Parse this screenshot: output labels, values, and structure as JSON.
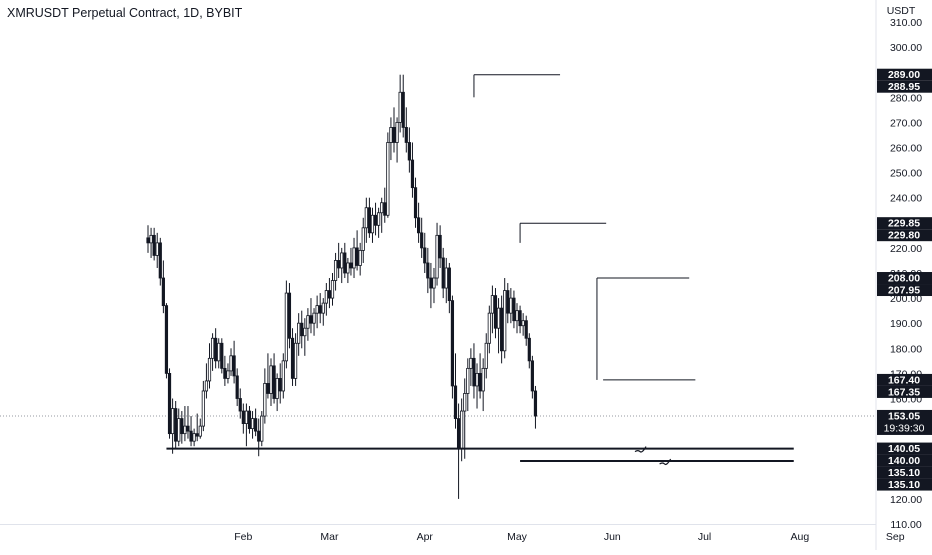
{
  "header": {
    "title": "XMRUSDT Perpetual Contract, 1D, BYBIT"
  },
  "chart_data": {
    "type": "candlestick",
    "currency": "USDT",
    "ylim": [
      110,
      310
    ],
    "y_ticks": [
      "110.00",
      "120.00",
      "130.00",
      "140.00",
      "150.00",
      "160.00",
      "170.00",
      "180.00",
      "190.00",
      "200.00",
      "210.00",
      "220.00",
      "230.00",
      "240.00",
      "250.00",
      "260.00",
      "270.00",
      "280.00",
      "290.00",
      "300.00",
      "310.00"
    ],
    "x_ticks": [
      {
        "label": "Feb",
        "day": 31
      },
      {
        "label": "Mar",
        "day": 59
      },
      {
        "label": "Apr",
        "day": 90
      },
      {
        "label": "May",
        "day": 120
      },
      {
        "label": "Jun",
        "day": 151
      },
      {
        "label": "Jul",
        "day": 181
      },
      {
        "label": "Aug",
        "day": 212
      },
      {
        "label": "Sep",
        "day": 243
      }
    ],
    "grid": false,
    "last_price": "153.05",
    "countdown": "19:39:30",
    "price_labels": [
      {
        "value": 289.0,
        "text": "289.00"
      },
      {
        "value": 288.95,
        "text": "288.95"
      },
      {
        "value": 229.85,
        "text": "229.85"
      },
      {
        "value": 229.8,
        "text": "229.80"
      },
      {
        "value": 208.0,
        "text": "208.00"
      },
      {
        "value": 207.95,
        "text": "207.95"
      },
      {
        "value": 167.4,
        "text": "167.40"
      },
      {
        "value": 167.35,
        "text": "167.35"
      },
      {
        "value": 140.05,
        "text": "140.05"
      },
      {
        "value": 140.0,
        "text": "140.00"
      },
      {
        "value": 135.1,
        "text": "135.10"
      },
      {
        "value": 135.1,
        "text": "135.10"
      }
    ],
    "drawings": [
      {
        "type": "hline",
        "price": 289,
        "from_day": 106,
        "to_day": 134,
        "weight": 1
      },
      {
        "type": "hline",
        "price": 229.8,
        "from_day": 121,
        "to_day": 149,
        "weight": 1
      },
      {
        "type": "hline",
        "price": 208,
        "from_day": 146,
        "to_day": 176,
        "weight": 1
      },
      {
        "type": "hline",
        "price": 167.4,
        "from_day": 148,
        "to_day": 178,
        "weight": 1
      },
      {
        "type": "vline",
        "day": 146,
        "from": 208,
        "to": 167.4,
        "weight": 1
      },
      {
        "type": "vline",
        "day": 106,
        "from": 289,
        "to": 280,
        "weight": 1
      },
      {
        "type": "vline",
        "day": 121,
        "from": 229.8,
        "to": 222,
        "weight": 1
      },
      {
        "type": "hline",
        "price": 140.05,
        "from_day": 6,
        "to_day": 210,
        "weight": 2
      },
      {
        "type": "hline",
        "price": 135.1,
        "from_day": 121,
        "to_day": 210,
        "weight": 2
      }
    ],
    "candles": [
      {
        "day": 0,
        "o": 224,
        "h": 229,
        "l": 218,
        "c": 222
      },
      {
        "day": 1,
        "o": 222,
        "h": 228,
        "l": 216,
        "c": 225
      },
      {
        "day": 2,
        "o": 225,
        "h": 228,
        "l": 215,
        "c": 217
      },
      {
        "day": 3,
        "o": 217,
        "h": 226,
        "l": 212,
        "c": 222
      },
      {
        "day": 4,
        "o": 222,
        "h": 224,
        "l": 205,
        "c": 208
      },
      {
        "day": 5,
        "o": 208,
        "h": 215,
        "l": 194,
        "c": 197
      },
      {
        "day": 6,
        "o": 197,
        "h": 198,
        "l": 168,
        "c": 170
      },
      {
        "day": 7,
        "o": 170,
        "h": 172,
        "l": 144,
        "c": 146
      },
      {
        "day": 8,
        "o": 146,
        "h": 160,
        "l": 138,
        "c": 156
      },
      {
        "day": 9,
        "o": 156,
        "h": 159,
        "l": 140,
        "c": 143
      },
      {
        "day": 10,
        "o": 143,
        "h": 156,
        "l": 141,
        "c": 152
      },
      {
        "day": 11,
        "o": 152,
        "h": 155,
        "l": 142,
        "c": 146
      },
      {
        "day": 12,
        "o": 146,
        "h": 157,
        "l": 143,
        "c": 149
      },
      {
        "day": 13,
        "o": 149,
        "h": 157,
        "l": 144,
        "c": 147
      },
      {
        "day": 14,
        "o": 147,
        "h": 153,
        "l": 141,
        "c": 143
      },
      {
        "day": 15,
        "o": 143,
        "h": 148,
        "l": 141,
        "c": 146
      },
      {
        "day": 16,
        "o": 146,
        "h": 154,
        "l": 143,
        "c": 145
      },
      {
        "day": 17,
        "o": 145,
        "h": 152,
        "l": 144,
        "c": 149
      },
      {
        "day": 18,
        "o": 149,
        "h": 167,
        "l": 147,
        "c": 163
      },
      {
        "day": 19,
        "o": 163,
        "h": 174,
        "l": 160,
        "c": 167
      },
      {
        "day": 20,
        "o": 167,
        "h": 182,
        "l": 164,
        "c": 176
      },
      {
        "day": 21,
        "o": 176,
        "h": 186,
        "l": 171,
        "c": 184
      },
      {
        "day": 22,
        "o": 184,
        "h": 188,
        "l": 172,
        "c": 175
      },
      {
        "day": 23,
        "o": 175,
        "h": 184,
        "l": 172,
        "c": 182
      },
      {
        "day": 24,
        "o": 182,
        "h": 184,
        "l": 170,
        "c": 172
      },
      {
        "day": 25,
        "o": 172,
        "h": 177,
        "l": 165,
        "c": 168
      },
      {
        "day": 26,
        "o": 168,
        "h": 174,
        "l": 166,
        "c": 171
      },
      {
        "day": 27,
        "o": 171,
        "h": 180,
        "l": 169,
        "c": 177
      },
      {
        "day": 28,
        "o": 177,
        "h": 183,
        "l": 166,
        "c": 169
      },
      {
        "day": 29,
        "o": 169,
        "h": 172,
        "l": 157,
        "c": 160
      },
      {
        "day": 30,
        "o": 160,
        "h": 164,
        "l": 152,
        "c": 155
      },
      {
        "day": 31,
        "o": 155,
        "h": 158,
        "l": 146,
        "c": 150
      },
      {
        "day": 32,
        "o": 150,
        "h": 158,
        "l": 141,
        "c": 155
      },
      {
        "day": 33,
        "o": 155,
        "h": 157,
        "l": 146,
        "c": 148
      },
      {
        "day": 34,
        "o": 148,
        "h": 155,
        "l": 144,
        "c": 152
      },
      {
        "day": 35,
        "o": 152,
        "h": 156,
        "l": 145,
        "c": 147
      },
      {
        "day": 36,
        "o": 147,
        "h": 152,
        "l": 137,
        "c": 143
      },
      {
        "day": 37,
        "o": 143,
        "h": 155,
        "l": 141,
        "c": 153
      },
      {
        "day": 38,
        "o": 153,
        "h": 172,
        "l": 150,
        "c": 166
      },
      {
        "day": 39,
        "o": 166,
        "h": 178,
        "l": 160,
        "c": 162
      },
      {
        "day": 40,
        "o": 162,
        "h": 176,
        "l": 157,
        "c": 173
      },
      {
        "day": 41,
        "o": 173,
        "h": 178,
        "l": 158,
        "c": 160
      },
      {
        "day": 42,
        "o": 160,
        "h": 170,
        "l": 155,
        "c": 168
      },
      {
        "day": 43,
        "o": 168,
        "h": 174,
        "l": 158,
        "c": 163
      },
      {
        "day": 44,
        "o": 163,
        "h": 178,
        "l": 160,
        "c": 175
      },
      {
        "day": 45,
        "o": 175,
        "h": 207,
        "l": 172,
        "c": 202
      },
      {
        "day": 46,
        "o": 202,
        "h": 206,
        "l": 180,
        "c": 184
      },
      {
        "day": 47,
        "o": 184,
        "h": 188,
        "l": 165,
        "c": 168
      },
      {
        "day": 48,
        "o": 168,
        "h": 186,
        "l": 165,
        "c": 182
      },
      {
        "day": 49,
        "o": 182,
        "h": 194,
        "l": 177,
        "c": 190
      },
      {
        "day": 50,
        "o": 190,
        "h": 195,
        "l": 180,
        "c": 185
      },
      {
        "day": 51,
        "o": 185,
        "h": 192,
        "l": 177,
        "c": 188
      },
      {
        "day": 52,
        "o": 188,
        "h": 196,
        "l": 183,
        "c": 193
      },
      {
        "day": 53,
        "o": 193,
        "h": 200,
        "l": 186,
        "c": 190
      },
      {
        "day": 54,
        "o": 190,
        "h": 196,
        "l": 185,
        "c": 194
      },
      {
        "day": 55,
        "o": 194,
        "h": 201,
        "l": 188,
        "c": 197
      },
      {
        "day": 56,
        "o": 197,
        "h": 202,
        "l": 190,
        "c": 194
      },
      {
        "day": 57,
        "o": 194,
        "h": 200,
        "l": 189,
        "c": 198
      },
      {
        "day": 58,
        "o": 198,
        "h": 206,
        "l": 193,
        "c": 203
      },
      {
        "day": 59,
        "o": 203,
        "h": 208,
        "l": 196,
        "c": 200
      },
      {
        "day": 60,
        "o": 200,
        "h": 210,
        "l": 197,
        "c": 207
      },
      {
        "day": 61,
        "o": 207,
        "h": 218,
        "l": 203,
        "c": 215
      },
      {
        "day": 62,
        "o": 215,
        "h": 222,
        "l": 208,
        "c": 212
      },
      {
        "day": 63,
        "o": 212,
        "h": 220,
        "l": 206,
        "c": 218
      },
      {
        "day": 64,
        "o": 218,
        "h": 222,
        "l": 208,
        "c": 210
      },
      {
        "day": 65,
        "o": 210,
        "h": 216,
        "l": 206,
        "c": 214
      },
      {
        "day": 66,
        "o": 214,
        "h": 220,
        "l": 209,
        "c": 212
      },
      {
        "day": 67,
        "o": 212,
        "h": 224,
        "l": 208,
        "c": 220
      },
      {
        "day": 68,
        "o": 220,
        "h": 227,
        "l": 211,
        "c": 213
      },
      {
        "day": 69,
        "o": 213,
        "h": 222,
        "l": 209,
        "c": 219
      },
      {
        "day": 70,
        "o": 219,
        "h": 232,
        "l": 214,
        "c": 228
      },
      {
        "day": 71,
        "o": 228,
        "h": 240,
        "l": 222,
        "c": 236
      },
      {
        "day": 72,
        "o": 236,
        "h": 240,
        "l": 224,
        "c": 226
      },
      {
        "day": 73,
        "o": 226,
        "h": 236,
        "l": 222,
        "c": 233
      },
      {
        "day": 74,
        "o": 233,
        "h": 238,
        "l": 225,
        "c": 229
      },
      {
        "day": 75,
        "o": 229,
        "h": 236,
        "l": 224,
        "c": 234
      },
      {
        "day": 76,
        "o": 234,
        "h": 240,
        "l": 226,
        "c": 238
      },
      {
        "day": 77,
        "o": 238,
        "h": 244,
        "l": 230,
        "c": 233
      },
      {
        "day": 78,
        "o": 233,
        "h": 266,
        "l": 232,
        "c": 262
      },
      {
        "day": 79,
        "o": 262,
        "h": 272,
        "l": 255,
        "c": 268
      },
      {
        "day": 80,
        "o": 268,
        "h": 276,
        "l": 258,
        "c": 262
      },
      {
        "day": 81,
        "o": 262,
        "h": 272,
        "l": 254,
        "c": 270
      },
      {
        "day": 82,
        "o": 270,
        "h": 289,
        "l": 266,
        "c": 282
      },
      {
        "day": 83,
        "o": 282,
        "h": 289,
        "l": 264,
        "c": 268
      },
      {
        "day": 84,
        "o": 268,
        "h": 276,
        "l": 258,
        "c": 262
      },
      {
        "day": 85,
        "o": 262,
        "h": 268,
        "l": 250,
        "c": 255
      },
      {
        "day": 86,
        "o": 255,
        "h": 262,
        "l": 240,
        "c": 244
      },
      {
        "day": 87,
        "o": 244,
        "h": 248,
        "l": 228,
        "c": 232
      },
      {
        "day": 88,
        "o": 232,
        "h": 238,
        "l": 222,
        "c": 226
      },
      {
        "day": 89,
        "o": 226,
        "h": 232,
        "l": 216,
        "c": 220
      },
      {
        "day": 90,
        "o": 220,
        "h": 226,
        "l": 210,
        "c": 214
      },
      {
        "day": 91,
        "o": 214,
        "h": 220,
        "l": 202,
        "c": 208
      },
      {
        "day": 92,
        "o": 208,
        "h": 214,
        "l": 196,
        "c": 204
      },
      {
        "day": 93,
        "o": 204,
        "h": 212,
        "l": 198,
        "c": 208
      },
      {
        "day": 94,
        "o": 208,
        "h": 230,
        "l": 205,
        "c": 225
      },
      {
        "day": 95,
        "o": 225,
        "h": 229,
        "l": 212,
        "c": 216
      },
      {
        "day": 96,
        "o": 216,
        "h": 220,
        "l": 200,
        "c": 204
      },
      {
        "day": 97,
        "o": 204,
        "h": 216,
        "l": 198,
        "c": 212
      },
      {
        "day": 98,
        "o": 212,
        "h": 214,
        "l": 194,
        "c": 199
      },
      {
        "day": 99,
        "o": 199,
        "h": 201,
        "l": 160,
        "c": 165
      },
      {
        "day": 100,
        "o": 165,
        "h": 178,
        "l": 148,
        "c": 152
      },
      {
        "day": 101,
        "o": 152,
        "h": 158,
        "l": 120,
        "c": 140
      },
      {
        "day": 102,
        "o": 140,
        "h": 160,
        "l": 135,
        "c": 155
      },
      {
        "day": 103,
        "o": 155,
        "h": 168,
        "l": 136,
        "c": 162
      },
      {
        "day": 104,
        "o": 162,
        "h": 176,
        "l": 155,
        "c": 172
      },
      {
        "day": 105,
        "o": 172,
        "h": 180,
        "l": 165,
        "c": 176
      },
      {
        "day": 106,
        "o": 176,
        "h": 182,
        "l": 160,
        "c": 165
      },
      {
        "day": 107,
        "o": 165,
        "h": 174,
        "l": 156,
        "c": 170
      },
      {
        "day": 108,
        "o": 170,
        "h": 178,
        "l": 160,
        "c": 163
      },
      {
        "day": 109,
        "o": 163,
        "h": 176,
        "l": 155,
        "c": 172
      },
      {
        "day": 110,
        "o": 172,
        "h": 186,
        "l": 168,
        "c": 182
      },
      {
        "day": 111,
        "o": 182,
        "h": 197,
        "l": 178,
        "c": 194
      },
      {
        "day": 112,
        "o": 194,
        "h": 205,
        "l": 186,
        "c": 201
      },
      {
        "day": 113,
        "o": 201,
        "h": 204,
        "l": 184,
        "c": 188
      },
      {
        "day": 114,
        "o": 188,
        "h": 200,
        "l": 178,
        "c": 196
      },
      {
        "day": 115,
        "o": 196,
        "h": 201,
        "l": 174,
        "c": 179
      },
      {
        "day": 116,
        "o": 179,
        "h": 208,
        "l": 176,
        "c": 203
      },
      {
        "day": 117,
        "o": 203,
        "h": 206,
        "l": 190,
        "c": 194
      },
      {
        "day": 118,
        "o": 194,
        "h": 204,
        "l": 190,
        "c": 200
      },
      {
        "day": 119,
        "o": 200,
        "h": 203,
        "l": 188,
        "c": 191
      },
      {
        "day": 120,
        "o": 191,
        "h": 198,
        "l": 186,
        "c": 195
      },
      {
        "day": 121,
        "o": 195,
        "h": 197,
        "l": 186,
        "c": 189
      },
      {
        "day": 122,
        "o": 189,
        "h": 194,
        "l": 185,
        "c": 191
      },
      {
        "day": 123,
        "o": 191,
        "h": 193,
        "l": 181,
        "c": 184
      },
      {
        "day": 124,
        "o": 184,
        "h": 186,
        "l": 172,
        "c": 175
      },
      {
        "day": 125,
        "o": 175,
        "h": 177,
        "l": 160,
        "c": 163
      },
      {
        "day": 126,
        "o": 163,
        "h": 165,
        "l": 148,
        "c": 153
      }
    ]
  }
}
